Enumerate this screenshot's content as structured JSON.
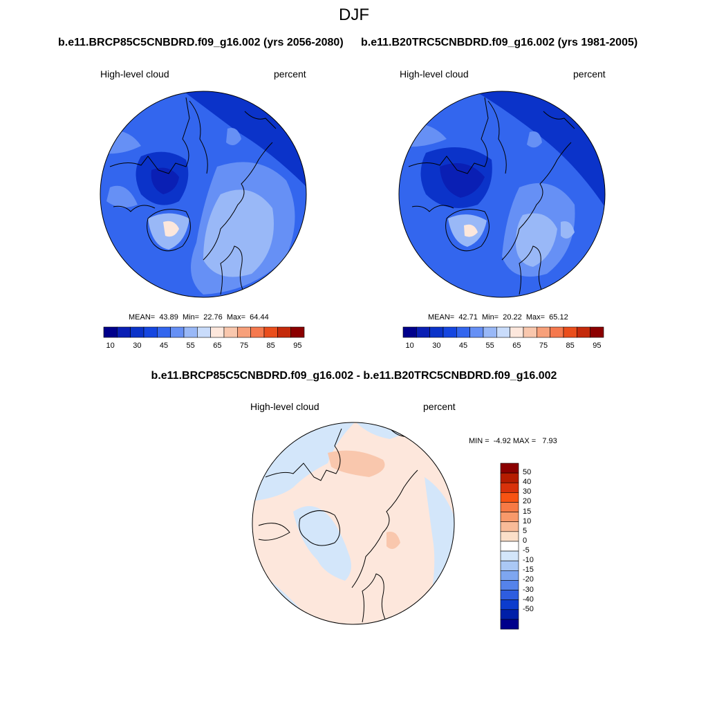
{
  "page": {
    "title": "DJF"
  },
  "panels": [
    {
      "heading": "b.e11.BRCP85C5CNBDRD.f09_g16.002 (yrs 2056-2080)",
      "variable": "High-level cloud",
      "units": "percent",
      "stats": "MEAN=  43.89  Min=  22.76  Max=  64.44"
    },
    {
      "heading": "b.e11.B20TRC5CNBDRD.f09_g16.002 (yrs 1981-2005)",
      "variable": "High-level cloud",
      "units": "percent",
      "stats": "MEAN=  42.71  Min=  20.22  Max=  65.12"
    }
  ],
  "difference": {
    "heading": "b.e11.BRCP85C5CNBDRD.f09_g16.002 - b.e11.B20TRC5CNBDRD.f09_g16.002",
    "variable": "High-level cloud",
    "units": "percent",
    "stats": "MIN =  -4.92 MAX =   7.93"
  },
  "colorbar_abs": {
    "colors": [
      "#00008b",
      "#0a1fb4",
      "#0b33c9",
      "#1546e0",
      "#3366ee",
      "#6690f5",
      "#99b8f7",
      "#c9dcfb",
      "#fde7dc",
      "#f9c7ad",
      "#f7a07a",
      "#f5794e",
      "#ea4e1c",
      "#c42a0b",
      "#8b0000"
    ],
    "tick_labels": [
      "10",
      "30",
      "45",
      "55",
      "65",
      "75",
      "85",
      "95"
    ]
  },
  "colorbar_diff": {
    "colors": [
      "#8b0000",
      "#b51c00",
      "#d8310a",
      "#f75313",
      "#f77a45",
      "#f8996a",
      "#f9bb98",
      "#fbdfc9",
      "#ffffff",
      "#d3e6fa",
      "#aac8f5",
      "#7ea6f0",
      "#5583ea",
      "#2e5ddf",
      "#0c3ccd",
      "#001fa8",
      "#00008b"
    ],
    "tick_labels": [
      "50",
      "40",
      "30",
      "20",
      "15",
      "10",
      "5",
      "0",
      "-5",
      "-10",
      "-15",
      "-20",
      "-30",
      "-40",
      "-50"
    ]
  }
}
